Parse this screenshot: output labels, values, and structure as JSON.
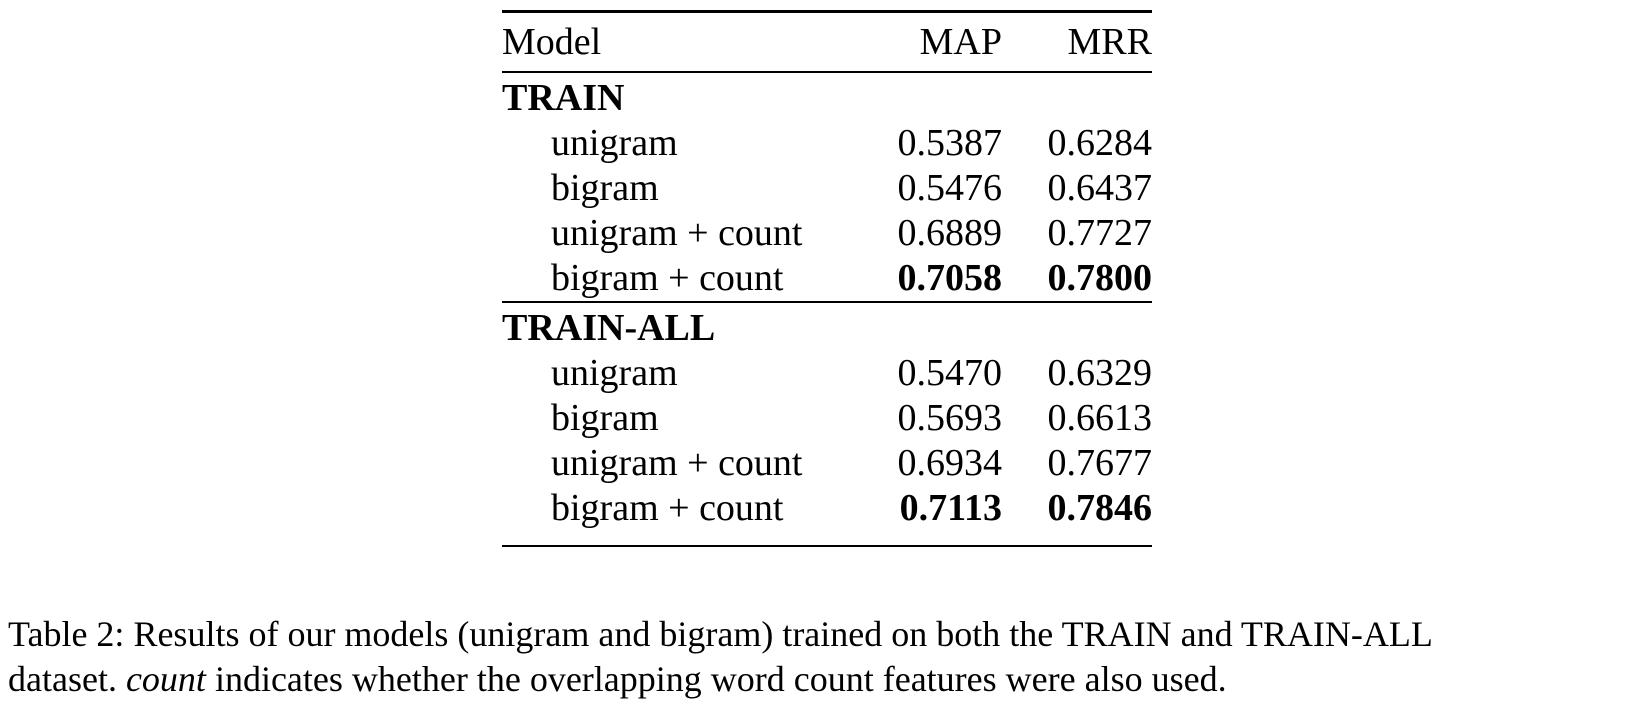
{
  "table": {
    "headers": {
      "model": "Model",
      "map": "MAP",
      "mrr": "MRR"
    },
    "sections": [
      {
        "label": "TRAIN",
        "rows": [
          {
            "name": "unigram",
            "map": "0.5387",
            "mrr": "0.6284",
            "best": false
          },
          {
            "name": "bigram",
            "map": "0.5476",
            "mrr": "0.6437",
            "best": false
          },
          {
            "name": "unigram + count",
            "map": "0.6889",
            "mrr": "0.7727",
            "best": false
          },
          {
            "name": "bigram + count",
            "map": "0.7058",
            "mrr": "0.7800",
            "best": true
          }
        ]
      },
      {
        "label": "TRAIN-ALL",
        "rows": [
          {
            "name": "unigram",
            "map": "0.5470",
            "mrr": "0.6329",
            "best": false
          },
          {
            "name": "bigram",
            "map": "0.5693",
            "mrr": "0.6613",
            "best": false
          },
          {
            "name": "unigram + count",
            "map": "0.6934",
            "mrr": "0.7677",
            "best": false
          },
          {
            "name": "bigram + count",
            "map": "0.7113",
            "mrr": "0.7846",
            "best": true
          }
        ]
      }
    ]
  },
  "caption": {
    "line1": "Table 2: Results of our models (unigram and bigram) trained on both the TRAIN and TRAIN-ALL",
    "line2_prefix": "dataset. ",
    "line2_italic": "count",
    "line2_rest": " indicates whether the overlapping word count features were also used."
  }
}
